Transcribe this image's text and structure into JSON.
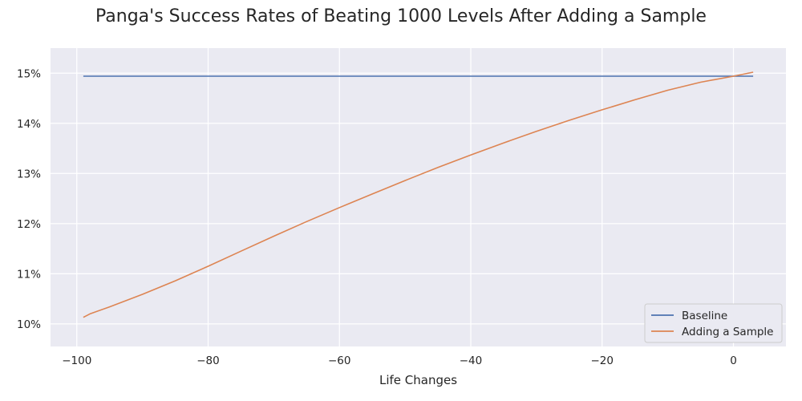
{
  "chart_data": {
    "type": "line",
    "title": "Panga's Success Rates of Beating 1000 Levels After Adding a Sample",
    "xlabel": "Life Changes",
    "ylabel": "",
    "xlim": [
      -104,
      8
    ],
    "ylim": [
      9.55,
      15.5
    ],
    "x_ticks": [
      -100,
      -80,
      -60,
      -40,
      -20,
      0
    ],
    "x_tick_labels": [
      "−100",
      "−80",
      "−60",
      "−40",
      "−20",
      "0"
    ],
    "y_ticks": [
      10,
      11,
      12,
      13,
      14,
      15
    ],
    "y_tick_labels": [
      "10%",
      "11%",
      "12%",
      "13%",
      "14%",
      "15%"
    ],
    "grid": true,
    "legend_position": "lower right",
    "series": [
      {
        "name": "Baseline",
        "color": "#4c72b0",
        "x": [
          -99,
          3
        ],
        "y": [
          14.94,
          14.94
        ]
      },
      {
        "name": "Adding a Sample",
        "color": "#dd8452",
        "x": [
          -99,
          -98,
          -95,
          -90,
          -85,
          -80,
          -75,
          -70,
          -65,
          -60,
          -55,
          -50,
          -45,
          -40,
          -35,
          -30,
          -25,
          -20,
          -15,
          -10,
          -5,
          0,
          3
        ],
        "y": [
          10.13,
          10.2,
          10.34,
          10.59,
          10.86,
          11.15,
          11.45,
          11.75,
          12.04,
          12.32,
          12.59,
          12.86,
          13.12,
          13.37,
          13.61,
          13.84,
          14.06,
          14.27,
          14.47,
          14.66,
          14.82,
          14.94,
          15.02
        ]
      }
    ]
  }
}
